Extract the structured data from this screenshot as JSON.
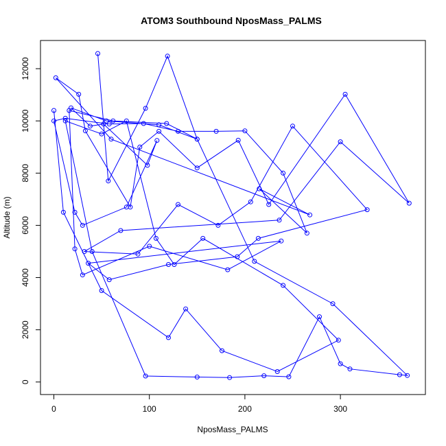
{
  "chart_data": {
    "type": "line",
    "title": "ATOM3 Southbound NposMass_PALMS",
    "xlabel": "NposMass_PALMS",
    "ylabel": "Altitude (m)",
    "xlim": [
      -14,
      389
    ],
    "ylim": [
      -480,
      13080
    ],
    "xticks": [
      0,
      100,
      200,
      300
    ],
    "yticks": [
      0,
      2000,
      4000,
      6000,
      8000,
      10000,
      12000
    ],
    "grid": false,
    "legend": "none",
    "color": "#0000ff",
    "series": [
      {
        "x": [
          46,
          57,
          96,
          119,
          150,
          110,
          55,
          18,
          38,
          52,
          98,
          108,
          76,
          30,
          22,
          0,
          12,
          58,
          94,
          130,
          170,
          200,
          240,
          265,
          215,
          268,
          60,
          2,
          26,
          33,
          80,
          90,
          110,
          150,
          193,
          225,
          305,
          372,
          300,
          236,
          70,
          32,
          88,
          130,
          172,
          206,
          250,
          328,
          214,
          192,
          120,
          58,
          36,
          238,
          182,
          100,
          30,
          22,
          16,
          62,
          118,
          150,
          210,
          292,
          370,
          362,
          310,
          300,
          278,
          246,
          220,
          184,
          150,
          96,
          40,
          12,
          50,
          76,
          107,
          126,
          156,
          240,
          298,
          234,
          176,
          138,
          120,
          50,
          10,
          0
        ],
        "y": [
          12580,
          7700,
          10480,
          12480,
          9300,
          9850,
          10000,
          10500,
          9800,
          9880,
          8300,
          9250,
          6700,
          6000,
          6500,
          10000,
          10100,
          9880,
          9900,
          9600,
          9600,
          9620,
          8000,
          5700,
          7400,
          6400,
          9300,
          11650,
          11020,
          9620,
          6700,
          9000,
          9600,
          8200,
          9260,
          6800,
          11020,
          6850,
          9200,
          6200,
          5800,
          5000,
          4900,
          6800,
          6000,
          6900,
          9800,
          6600,
          5500,
          4800,
          4500,
          3920,
          4550,
          5400,
          4300,
          5200,
          4100,
          5100,
          10400,
          10000,
          9900,
          9300,
          4620,
          3000,
          250,
          280,
          500,
          700,
          2500,
          200,
          240,
          170,
          190,
          230,
          5000,
          10000,
          9500,
          10000,
          5500,
          4500,
          5500,
          3700,
          1600,
          400,
          1200,
          2800,
          1700,
          3500,
          6500,
          10400
        ]
      }
    ]
  }
}
